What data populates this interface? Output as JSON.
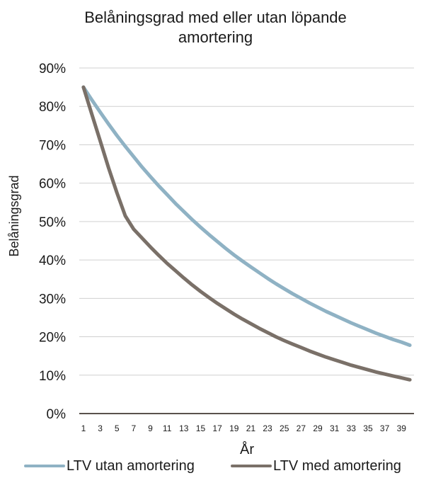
{
  "chart_data": {
    "type": "line",
    "title_line1": "Belåningsgrad med eller utan löpande",
    "title_line2": "amortering",
    "xlabel": "År",
    "ylabel": "Belåningsgrad",
    "ylim": [
      0,
      90
    ],
    "yticks": [
      "0%",
      "10%",
      "20%",
      "30%",
      "40%",
      "50%",
      "60%",
      "70%",
      "80%",
      "90%"
    ],
    "x": [
      1,
      2,
      3,
      4,
      5,
      6,
      7,
      8,
      9,
      10,
      11,
      12,
      13,
      14,
      15,
      16,
      17,
      18,
      19,
      20,
      21,
      22,
      23,
      24,
      25,
      26,
      27,
      28,
      29,
      30,
      31,
      32,
      33,
      34,
      35,
      36,
      37,
      38,
      39,
      40
    ],
    "xtick_labels": [
      "1",
      "3",
      "5",
      "7",
      "9",
      "11",
      "13",
      "15",
      "17",
      "19",
      "21",
      "23",
      "25",
      "27",
      "29",
      "31",
      "33",
      "35",
      "37",
      "39"
    ],
    "grid": true,
    "legend_position": "bottom",
    "series": [
      {
        "name": "LTV utan amortering",
        "color": "#8fb2c4",
        "values": [
          85.0,
          81.7,
          78.5,
          75.4,
          72.4,
          69.6,
          66.9,
          64.2,
          61.7,
          59.3,
          57.0,
          54.7,
          52.6,
          50.5,
          48.5,
          46.6,
          44.8,
          43.0,
          41.3,
          39.7,
          38.2,
          36.7,
          35.2,
          33.8,
          32.5,
          31.2,
          30.0,
          28.8,
          27.7,
          26.6,
          25.6,
          24.6,
          23.6,
          22.7,
          21.8,
          20.9,
          20.1,
          19.3,
          18.6,
          17.8
        ]
      },
      {
        "name": "LTV med amortering",
        "color": "#7a7068",
        "values": [
          85.0,
          78.0,
          71.0,
          64.0,
          57.5,
          51.5,
          48.0,
          45.7,
          43.4,
          41.2,
          39.1,
          37.2,
          35.3,
          33.5,
          31.8,
          30.2,
          28.7,
          27.3,
          25.9,
          24.6,
          23.4,
          22.2,
          21.1,
          20.0,
          19.0,
          18.1,
          17.2,
          16.3,
          15.5,
          14.7,
          14.0,
          13.3,
          12.6,
          12.0,
          11.4,
          10.8,
          10.3,
          9.8,
          9.3,
          8.8
        ]
      }
    ]
  }
}
